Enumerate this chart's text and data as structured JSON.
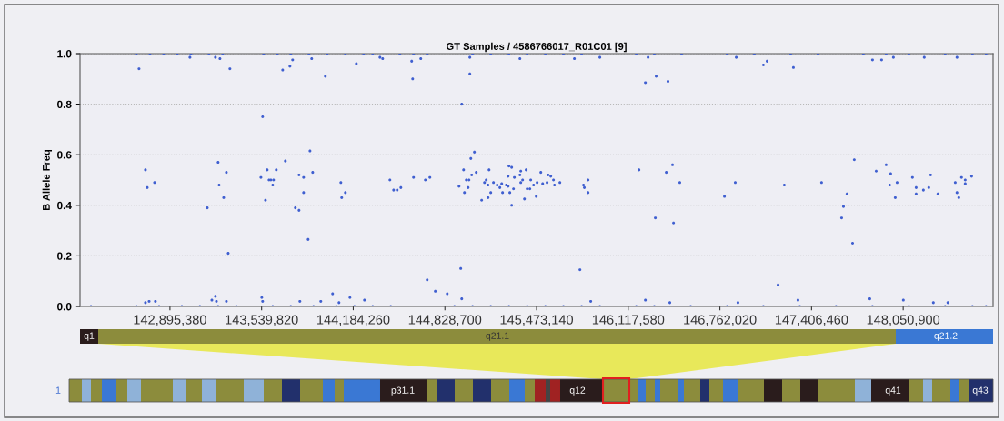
{
  "chart_data": {
    "type": "scatter",
    "title": "GT Samples / 4586766017_R01C01 [9]",
    "ylabel": "B Allele Freq",
    "xlim": [
      142263000,
      148683000
    ],
    "ylim": [
      0,
      1
    ],
    "xticks": [
      {
        "value": 142895380,
        "label": "142,895,380"
      },
      {
        "value": 143539820,
        "label": "143,539,820"
      },
      {
        "value": 144184260,
        "label": "144,184,260"
      },
      {
        "value": 144828700,
        "label": "144,828,700"
      },
      {
        "value": 145473140,
        "label": "145,473,140"
      },
      {
        "value": 146117580,
        "label": "146,117,580"
      },
      {
        "value": 146762020,
        "label": "146,762,020"
      },
      {
        "value": 147406460,
        "label": "147,406,460"
      },
      {
        "value": 148050900,
        "label": "148,050,900"
      }
    ],
    "yticks": [
      {
        "value": 0,
        "label": "0.0"
      },
      {
        "value": 0.2,
        "label": "0.2"
      },
      {
        "value": 0.4,
        "label": "0.4"
      },
      {
        "value": 0.6,
        "label": "0.6"
      },
      {
        "value": 0.8,
        "label": "0.8"
      },
      {
        "value": 1,
        "label": "1.0"
      }
    ],
    "grid": "y",
    "marker": "circle",
    "annotations": [
      "q1",
      "q21.1",
      "q21.2",
      "1",
      "p31.1",
      "q12",
      "q41",
      "q43"
    ],
    "series": [
      {
        "color": "#3f5fd0",
        "x": [
          142659000,
          142755000,
          142851000,
          142947000,
          143043000,
          143170000,
          143266000,
          143554000,
          143650000,
          143745000,
          143873000,
          144001000,
          144129000,
          144257000,
          144321000,
          144512000,
          144608000,
          144704000,
          145023000,
          145151000,
          145279000,
          145407000,
          145535000,
          145662000,
          145790000,
          146174000,
          146301000,
          146493000,
          146813000,
          147004000,
          147260000,
          147452000,
          147771000,
          147931000,
          148091000,
          148346000,
          148538000,
          148634000,
          142340000,
          142659000,
          142819000,
          142979000,
          143106000,
          143234000,
          143362000,
          143618000,
          143745000,
          143905000,
          144065000,
          144193000,
          144321000,
          144448000,
          144896000,
          145023000,
          145151000,
          145279000,
          145407000,
          145535000,
          145662000,
          145790000,
          145918000,
          146174000,
          146301000,
          146557000,
          146813000,
          147068000,
          147324000,
          147579000,
          147835000,
          148091000,
          148346000,
          148538000,
          148634000,
          142678000,
          142723000,
          142736000,
          142787000,
          143036000,
          143158000,
          143215000,
          143247000,
          143234000,
          143241000,
          143273000,
          143292000,
          143305000,
          143317000,
          143535000,
          143547000,
          143567000,
          143579000,
          143592000,
          143605000,
          143618000,
          143624000,
          143643000,
          143688000,
          143707000,
          143739000,
          143758000,
          143777000,
          143803000,
          143803000,
          143835000,
          143835000,
          143867000,
          143880000,
          143892000,
          143899000,
          143988000,
          144039000,
          144097000,
          144103000,
          144129000,
          144206000,
          144372000,
          142723000,
          142749000,
          142793000,
          143190000,
          143215000,
          143222000,
          143292000,
          143541000,
          143547000,
          143809000,
          143956000,
          144084000,
          144161000,
          144263000,
          144391000,
          144595000,
          144602000,
          144659000,
          145004000,
          144947000,
          145004000,
          145356000,
          145739000,
          145918000,
          146238000,
          146314000,
          146397000,
          146257000,
          144442000,
          144468000,
          144493000,
          144519000,
          144608000,
          144691000,
          144723000,
          144928000,
          144960000,
          144966000,
          144979000,
          144998000,
          144992000,
          145011000,
          145036000,
          145017000,
          145049000,
          145087000,
          145107000,
          145119000,
          145132000,
          145132000,
          145139000,
          145151000,
          145170000,
          145196000,
          145215000,
          145228000,
          145234000,
          145260000,
          145273000,
          145279000,
          145298000,
          145273000,
          145285000,
          145298000,
          145311000,
          145317000,
          145356000,
          145362000,
          145362000,
          145375000,
          145388000,
          145400000,
          145407000,
          145426000,
          145432000,
          145452000,
          145471000,
          145477000,
          145503000,
          145516000,
          145547000,
          145554000,
          145573000,
          145592000,
          145599000,
          145637000,
          145803000,
          145809000,
          145835000,
          145835000,
          146193000,
          146385000,
          146429000,
          146480000,
          146308000,
          146436000,
          144940000,
          144704000,
          144761000,
          144845000,
          145778000,
          144947000,
          146238000,
          146410000,
          145854000,
          146877000,
          147068000,
          147094000,
          147279000,
          147835000,
          147899000,
          147982000,
          148199000,
          148429000,
          146794000,
          146870000,
          147215000,
          147477000,
          147707000,
          147656000,
          147631000,
          147618000,
          147695000,
          147171000,
          147861000,
          147931000,
          147963000,
          147956000,
          148008000,
          147995000,
          148116000,
          148142000,
          148142000,
          148193000,
          148231000,
          148244000,
          148295000,
          148417000,
          148429000,
          148442000,
          148461000,
          148487000,
          148487000,
          148532000,
          146889000,
          147311000,
          147816000,
          148052000,
          148263000,
          148365000
        ],
        "values": [
          1,
          1,
          1,
          1,
          1,
          1,
          1,
          1,
          1,
          1,
          1,
          1,
          1,
          1,
          1,
          1,
          1,
          1,
          1,
          1,
          1,
          1,
          1,
          1,
          1,
          1,
          1,
          1,
          1,
          1,
          1,
          1,
          1,
          1,
          1,
          1,
          1,
          1,
          0,
          0,
          0,
          0,
          0,
          0,
          0,
          0,
          0,
          0,
          0,
          0,
          0,
          0,
          0,
          0,
          0,
          0,
          0,
          0,
          0,
          0,
          0,
          0,
          0,
          0,
          0,
          0,
          0,
          0,
          0,
          0,
          0,
          0,
          0,
          0.94,
          0.54,
          0.47,
          0.49,
          0.985,
          0.39,
          0.985,
          0.98,
          0.57,
          0.48,
          0.43,
          0.53,
          0.21,
          0.94,
          0.51,
          0.75,
          0.42,
          0.54,
          0.5,
          0.5,
          0.48,
          0.5,
          0.54,
          0.935,
          0.575,
          0.95,
          0.975,
          0.39,
          0.38,
          0.52,
          0.51,
          0.45,
          0.265,
          0.615,
          0.98,
          0.53,
          0.91,
          0.05,
          0.49,
          0.43,
          0.45,
          0.96,
          0.985,
          0.015,
          0.02,
          0.02,
          0.025,
          0.04,
          0.02,
          0.02,
          0.035,
          0.02,
          0.02,
          0.02,
          0.015,
          0.035,
          0.025,
          0.98,
          0.97,
          0.9,
          0.98,
          0.92,
          0.8,
          0.985,
          0.98,
          0.98,
          0.985,
          0.885,
          0.91,
          0.89,
          0.985,
          0.5,
          0.46,
          0.46,
          0.47,
          0.51,
          0.5,
          0.51,
          0.475,
          0.54,
          0.45,
          0.5,
          0.5,
          0.47,
          0.585,
          0.61,
          0.52,
          0.53,
          0.42,
          0.49,
          0.5,
          0.48,
          0.43,
          0.54,
          0.45,
          0.49,
          0.48,
          0.47,
          0.485,
          0.45,
          0.48,
          0.515,
          0.555,
          0.55,
          0.475,
          0.45,
          0.4,
          0.465,
          0.51,
          0.52,
          0.535,
          0.49,
          0.5,
          0.425,
          0.54,
          0.465,
          0.465,
          0.5,
          0.48,
          0.435,
          0.49,
          0.53,
          0.485,
          0.49,
          0.52,
          0.515,
          0.5,
          0.48,
          0.49,
          0.48,
          0.47,
          0.5,
          0.45,
          0.54,
          0.53,
          0.56,
          0.49,
          0.35,
          0.33,
          0.15,
          0.105,
          0.06,
          0.05,
          0.145,
          0.03,
          0.025,
          0.015,
          0.02,
          0.985,
          0.955,
          0.97,
          0.945,
          0.975,
          0.975,
          0.985,
          0.985,
          0.985,
          0.435,
          0.49,
          0.48,
          0.49,
          0.58,
          0.445,
          0.395,
          0.35,
          0.25,
          0.085,
          0.535,
          0.56,
          0.525,
          0.48,
          0.49,
          0.43,
          0.51,
          0.47,
          0.445,
          0.46,
          0.47,
          0.52,
          0.445,
          0.49,
          0.45,
          0.43,
          0.51,
          0.5,
          0.485,
          0.515,
          0.015,
          0.025,
          0.03,
          0.025,
          0.015,
          0.015
        ]
      }
    ]
  }
}
